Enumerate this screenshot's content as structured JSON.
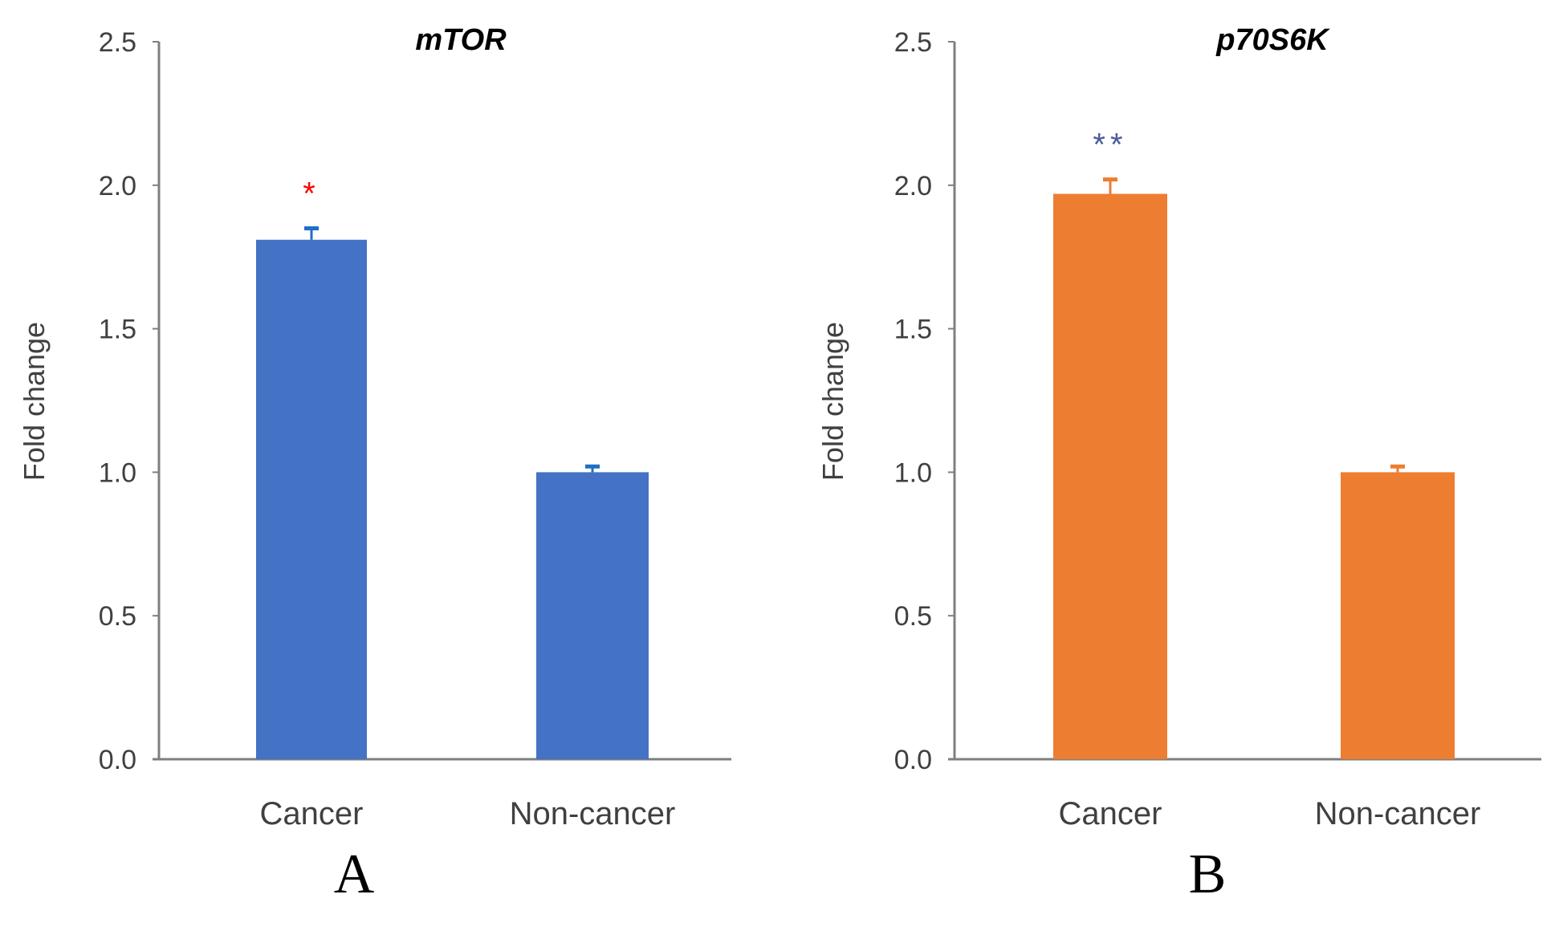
{
  "chart_data": [
    {
      "type": "bar",
      "panel": "A",
      "title": "mTOR",
      "xlabel": "",
      "ylabel": "Fold change",
      "ylim": [
        0,
        2.5
      ],
      "yticks": [
        "0.0",
        "0.5",
        "1.0",
        "1.5",
        "2.0",
        "2.5"
      ],
      "categories": [
        "Cancer",
        "Non-cancer"
      ],
      "values": [
        1.81,
        1.0
      ],
      "errors": [
        0.04,
        0.02
      ],
      "significance": [
        "*",
        ""
      ],
      "bar_color": "#4472C4",
      "error_color": "#1F6FC5",
      "significance_color": "#FF0000",
      "grid": false
    },
    {
      "type": "bar",
      "panel": "B",
      "title": "p70S6K",
      "xlabel": "",
      "ylabel": "Fold change",
      "ylim": [
        0,
        2.5
      ],
      "yticks": [
        "0.0",
        "0.5",
        "1.0",
        "1.5",
        "2.0",
        "2.5"
      ],
      "categories": [
        "Cancer",
        "Non-cancer"
      ],
      "values": [
        1.97,
        1.0
      ],
      "errors": [
        0.05,
        0.02
      ],
      "significance": [
        "**",
        ""
      ],
      "bar_color": "#ED7D31",
      "error_color": "#ED7D31",
      "significance_color": "#4A5A9C",
      "grid": false
    }
  ]
}
